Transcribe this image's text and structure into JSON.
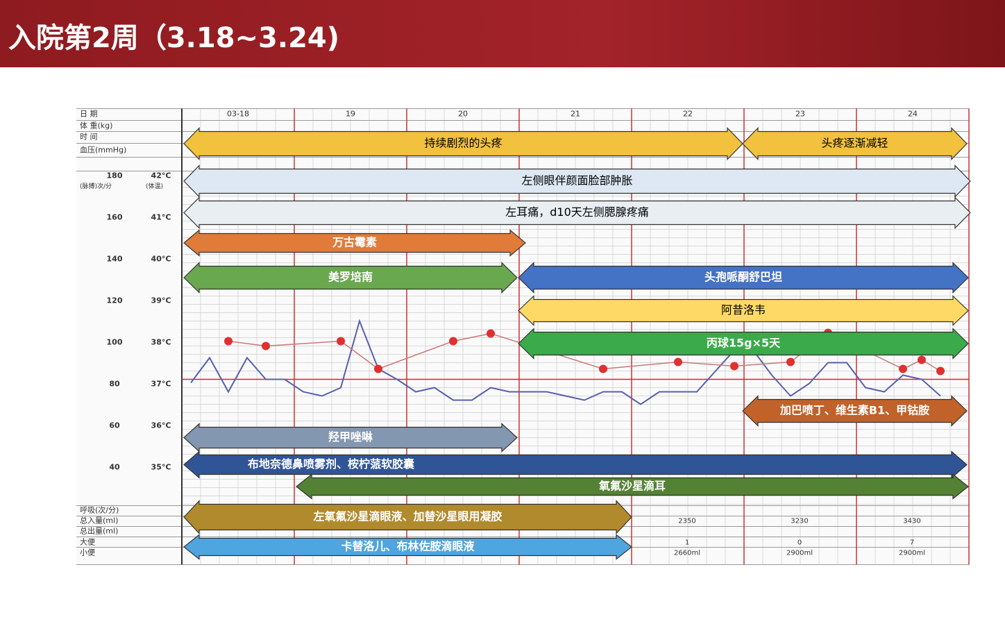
{
  "header": {
    "title": "入院第2周（3.18~3.24)"
  },
  "chart": {
    "row_labels": [
      "日 期",
      "体 重(kg)",
      "时 间",
      "血压(mmHg)",
      "呼吸(次/分)",
      "总入量(ml)",
      "总出量(ml)",
      "大便",
      "小便"
    ],
    "dates": [
      "03-18",
      "19",
      "20",
      "21",
      "22",
      "23",
      "24"
    ],
    "pulse_header": "(脉搏)次/分",
    "temp_header": "(体温)",
    "pulse_ticks": [
      "180",
      "160",
      "140",
      "120",
      "100",
      "80",
      "60",
      "40"
    ],
    "temp_ticks": [
      "42°C",
      "41°C",
      "40°C",
      "39°C",
      "38°C",
      "37°C",
      "36°C",
      "35°C"
    ],
    "intake": [
      "2350",
      "3230",
      "3430"
    ],
    "stool": [
      "1",
      "0",
      "7"
    ],
    "urine": [
      "2660ml",
      "2900ml",
      "2900ml"
    ]
  },
  "arrows": [
    {
      "label": "持续剧烈的头疼"
    },
    {
      "label": "头疼逐渐减轻"
    },
    {
      "label": "左侧眼伴颜面脸部肿胀"
    },
    {
      "label": "左耳痛，d10天左侧腮腺疼痛"
    },
    {
      "label": "万古霉素"
    },
    {
      "label": "美罗培南"
    },
    {
      "label": "头孢哌酮舒巴坦"
    },
    {
      "label": "阿昔洛韦"
    },
    {
      "label": "丙球15g×5天"
    },
    {
      "label": "加巴喷丁、维生素B1、甲钴胺"
    },
    {
      "label": "羟甲唑啉"
    },
    {
      "label": "布地奈德鼻喷雾剂、桉柠蒎软胶囊"
    },
    {
      "label": "氧氟沙星滴耳"
    },
    {
      "label": "左氧氟沙星滴眼液、加替沙星眼用凝胶"
    },
    {
      "label": "卡替洛儿、布林佐胺滴眼液"
    }
  ]
}
